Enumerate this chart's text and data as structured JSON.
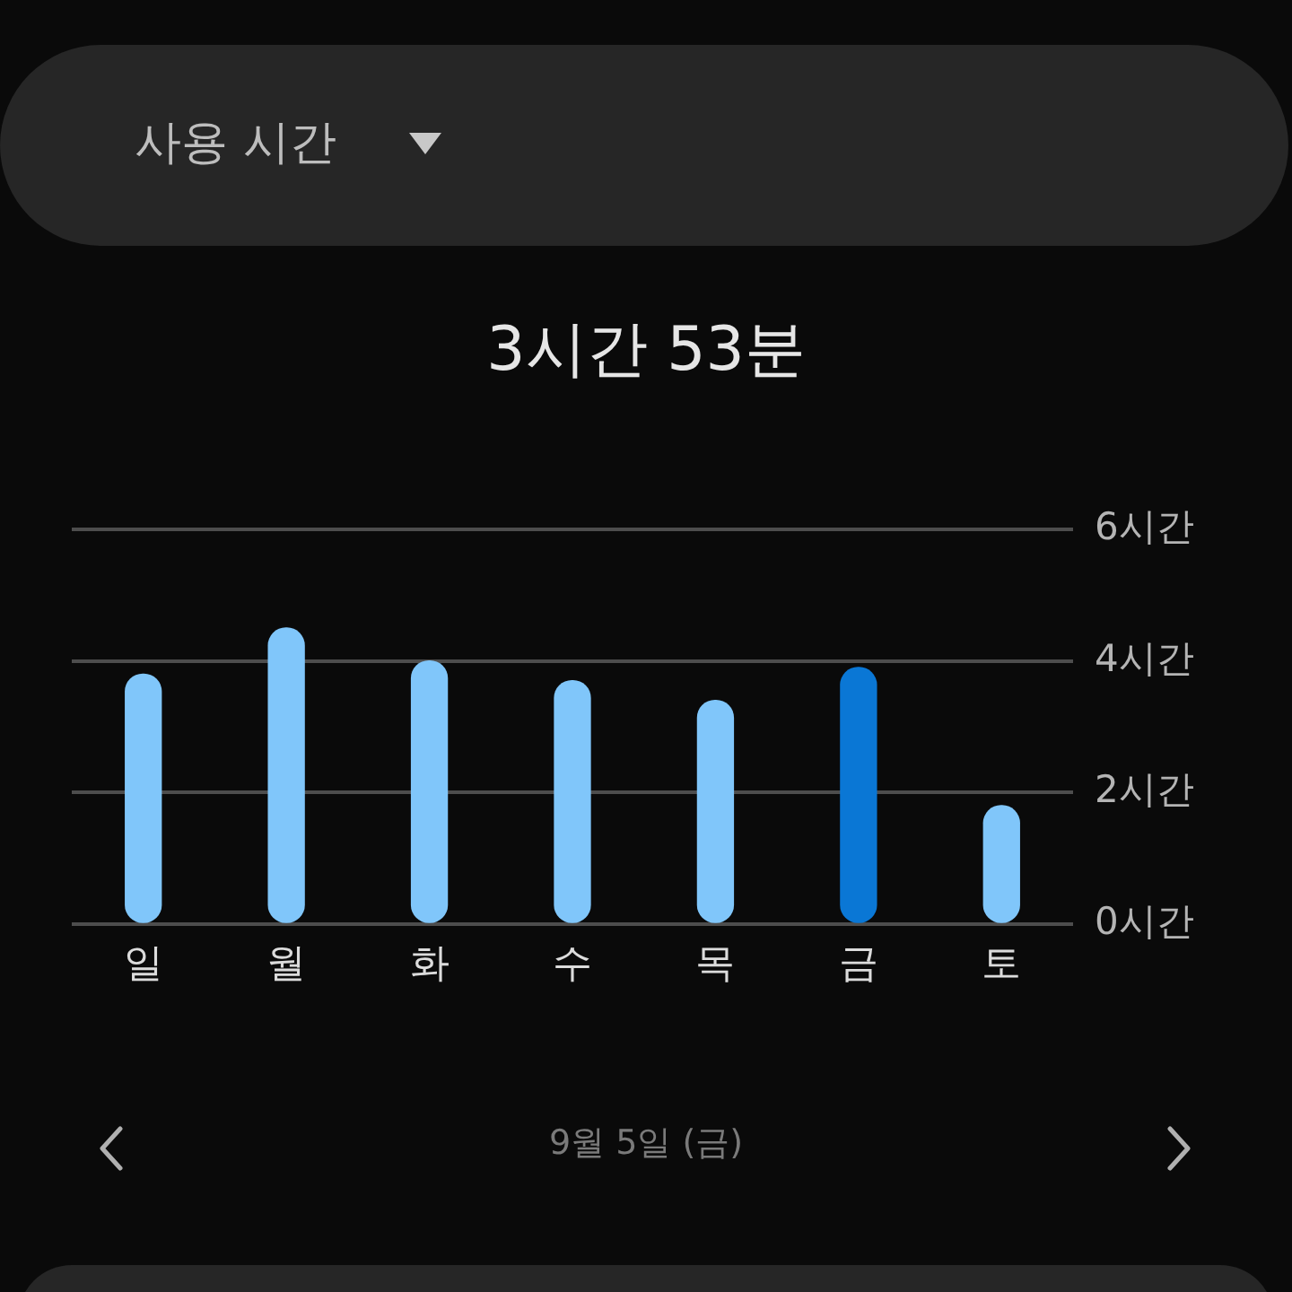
{
  "chart_data": {
    "type": "bar",
    "title": "사용 시간",
    "subtitle": "3시간 53분",
    "annotations": [
      "9월 5일 (금)"
    ],
    "categories": [
      "일",
      "월",
      "화",
      "수",
      "목",
      "금",
      "토"
    ],
    "values": [
      3.8,
      4.5,
      4.0,
      3.7,
      3.4,
      3.9,
      1.8
    ],
    "colors": [
      "#80c6fa",
      "#80c6fa",
      "#80c6fa",
      "#80c6fa",
      "#80c6fa",
      "#0a77d5",
      "#80c6fa"
    ],
    "ylim": [
      0,
      6
    ],
    "yticks": [
      {
        "value": 0,
        "label": "0시간"
      },
      {
        "value": 2,
        "label": "2시간"
      },
      {
        "value": 4,
        "label": "4시간"
      },
      {
        "value": 6,
        "label": "6시간"
      }
    ],
    "grid": "y",
    "legend": false
  }
}
